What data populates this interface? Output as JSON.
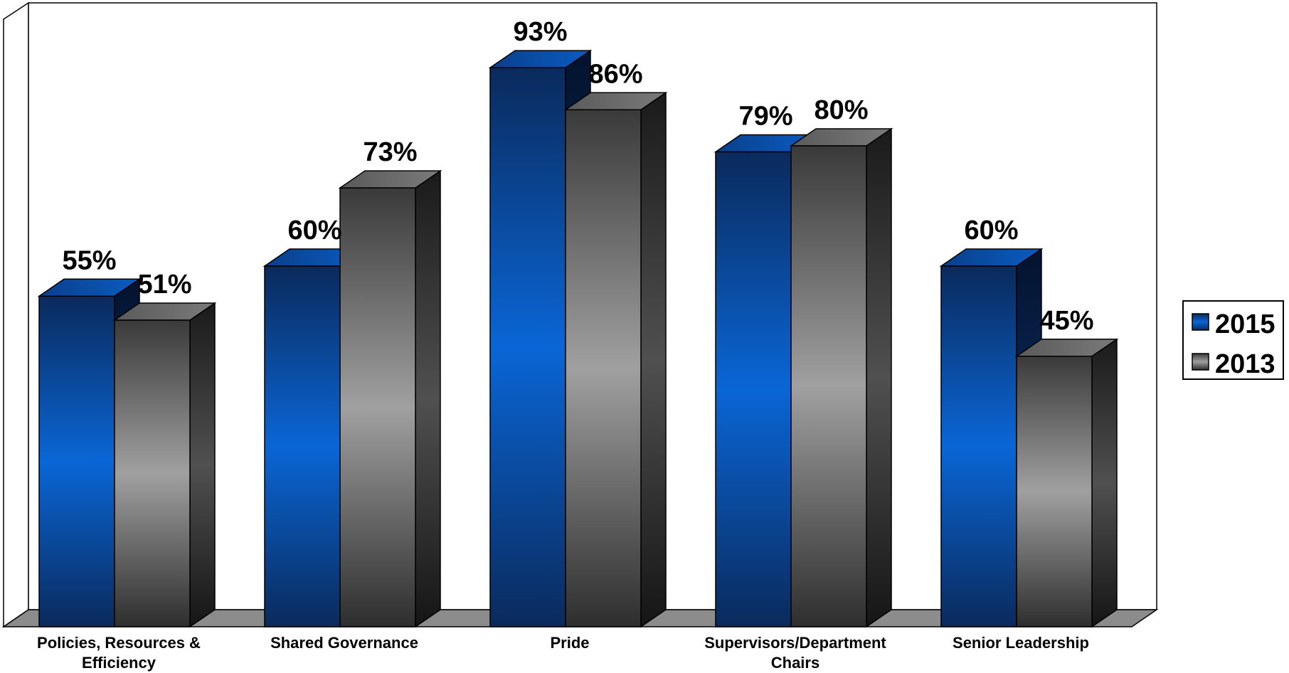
{
  "chart_data": {
    "type": "bar",
    "categories": [
      [
        "Policies, Resources &",
        "Efficiency"
      ],
      [
        "Shared Governance"
      ],
      [
        "Pride"
      ],
      [
        "Supervisors/Department",
        "Chairs"
      ],
      [
        "Senior Leadership"
      ]
    ],
    "series": [
      {
        "name": "2015",
        "values": [
          55,
          60,
          93,
          79,
          60
        ],
        "labels": [
          "55%",
          "60%",
          "93%",
          "79%",
          "60%"
        ],
        "color": "#0b5cc7"
      },
      {
        "name": "2013",
        "values": [
          51,
          73,
          86,
          80,
          45
        ],
        "labels": [
          "51%",
          "73%",
          "86%",
          "80%",
          "45%"
        ],
        "color": "#8c8c8c"
      }
    ],
    "ylim": [
      0,
      100
    ],
    "grid": false,
    "legend_position": "right",
    "style": "3d-clustered-column"
  }
}
